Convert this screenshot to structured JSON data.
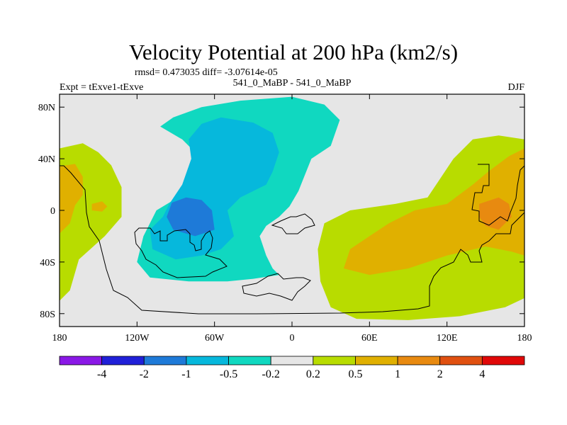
{
  "chart_data": {
    "type": "contour_map",
    "title": "Velocity Potential at 200 hPa (km2/s)",
    "stats_line": "rmsd= 0.473035 diff= -3.07614e-05",
    "left_label": "Expt = tExve1-tExve",
    "center_label": "541_0_MaBP - 541_0_MaBP",
    "right_label": "DJF",
    "x_axis": {
      "range": [
        -180,
        180
      ],
      "ticks": [
        -180,
        -120,
        -60,
        0,
        60,
        120,
        180
      ],
      "tick_labels": [
        "180",
        "120W",
        "60W",
        "0",
        "60E",
        "120E",
        "180"
      ]
    },
    "y_axis": {
      "range": [
        -90,
        90
      ],
      "ticks": [
        80,
        40,
        0,
        -40,
        -80
      ],
      "tick_labels": [
        "80N",
        "40N",
        "0",
        "40S",
        "80S"
      ]
    },
    "colorbar": {
      "boundaries": [
        "-4",
        "-2",
        "-1",
        "-0.5",
        "-0.2",
        "0.2",
        "0.5",
        "1",
        "2",
        "4"
      ],
      "colors": [
        "#8a18e6",
        "#2020d8",
        "#1e7ad8",
        "#06b8dc",
        "#10d8c0",
        "#e6e6e6",
        "#b8dc00",
        "#e0b000",
        "#e88a10",
        "#e05010",
        "#e00808"
      ]
    },
    "regions": [
      {
        "level": "0.2 to 0.5",
        "color": "#b8dc00",
        "name": "positive-west",
        "polygon": [
          [
            -180,
            48
          ],
          [
            -162,
            52
          ],
          [
            -150,
            45
          ],
          [
            -140,
            35
          ],
          [
            -132,
            18
          ],
          [
            -132,
            -5
          ],
          [
            -145,
            -20
          ],
          [
            -165,
            -38
          ],
          [
            -172,
            -62
          ],
          [
            -180,
            -70
          ]
        ]
      },
      {
        "level": "0.5 to 1",
        "color": "#e0b000",
        "name": "positive-west-core",
        "polygon": [
          [
            -180,
            34
          ],
          [
            -168,
            36
          ],
          [
            -162,
            26
          ],
          [
            -162,
            12
          ],
          [
            -168,
            4
          ],
          [
            -172,
            -10
          ],
          [
            -180,
            -18
          ]
        ]
      },
      {
        "level": "0.5 to 1",
        "color": "#e0b000",
        "name": "positive-west-spot",
        "polygon": [
          [
            -155,
            5
          ],
          [
            -147,
            7
          ],
          [
            -143,
            3
          ],
          [
            -147,
            -1
          ],
          [
            -155,
            0
          ]
        ]
      },
      {
        "level": "0.2 to 0.5",
        "color": "#b8dc00",
        "name": "positive-east",
        "polygon": [
          [
            180,
            55
          ],
          [
            160,
            58
          ],
          [
            140,
            55
          ],
          [
            125,
            40
          ],
          [
            105,
            10
          ],
          [
            80,
            5
          ],
          [
            45,
            0
          ],
          [
            25,
            -10
          ],
          [
            20,
            -30
          ],
          [
            22,
            -55
          ],
          [
            30,
            -75
          ],
          [
            50,
            -84
          ],
          [
            90,
            -85
          ],
          [
            130,
            -82
          ],
          [
            165,
            -75
          ],
          [
            180,
            -68
          ]
        ]
      },
      {
        "level": "0.5 to 1",
        "color": "#e0b000",
        "name": "positive-east-core",
        "polygon": [
          [
            180,
            48
          ],
          [
            168,
            42
          ],
          [
            152,
            30
          ],
          [
            140,
            20
          ],
          [
            120,
            5
          ],
          [
            95,
            0
          ],
          [
            75,
            -10
          ],
          [
            60,
            -20
          ],
          [
            45,
            -30
          ],
          [
            40,
            -45
          ],
          [
            60,
            -50
          ],
          [
            90,
            -45
          ],
          [
            120,
            -35
          ],
          [
            150,
            -28
          ],
          [
            170,
            -32
          ],
          [
            180,
            -35
          ]
        ]
      },
      {
        "level": "1 to 2",
        "color": "#e88a10",
        "name": "positive-east-max",
        "polygon": [
          [
            145,
            5
          ],
          [
            160,
            10
          ],
          [
            168,
            5
          ],
          [
            170,
            -5
          ],
          [
            160,
            -15
          ],
          [
            150,
            -12
          ],
          [
            145,
            -5
          ]
        ]
      },
      {
        "level": "-0.5 to -0.2",
        "color": "#10d8c0",
        "name": "negative-outer",
        "polygon": [
          [
            -102,
            65
          ],
          [
            -92,
            72
          ],
          [
            -70,
            80
          ],
          [
            -40,
            85
          ],
          [
            0,
            88
          ],
          [
            25,
            82
          ],
          [
            37,
            70
          ],
          [
            30,
            50
          ],
          [
            15,
            40
          ],
          [
            5,
            15
          ],
          [
            -2,
            3
          ],
          [
            -10,
            -5
          ],
          [
            -20,
            -12
          ],
          [
            -25,
            -20
          ],
          [
            -20,
            -35
          ],
          [
            -15,
            -45
          ],
          [
            -10,
            -50
          ],
          [
            -30,
            -53
          ],
          [
            -50,
            -55
          ],
          [
            -80,
            -55
          ],
          [
            -110,
            -52
          ],
          [
            -120,
            -40
          ],
          [
            -115,
            -20
          ],
          [
            -105,
            0
          ],
          [
            -80,
            15
          ],
          [
            -70,
            25
          ],
          [
            -75,
            45
          ],
          [
            -85,
            55
          ]
        ]
      },
      {
        "level": "-1 to -0.5",
        "color": "#06b8dc",
        "name": "negative-mid",
        "polygon": [
          [
            -80,
            55
          ],
          [
            -70,
            67
          ],
          [
            -55,
            72
          ],
          [
            -30,
            68
          ],
          [
            -15,
            60
          ],
          [
            -10,
            45
          ],
          [
            -15,
            30
          ],
          [
            -20,
            20
          ],
          [
            -40,
            10
          ],
          [
            -50,
            0
          ],
          [
            -45,
            -20
          ],
          [
            -55,
            -30
          ],
          [
            -70,
            -35
          ],
          [
            -90,
            -38
          ],
          [
            -108,
            -30
          ],
          [
            -110,
            -15
          ],
          [
            -100,
            -5
          ],
          [
            -95,
            5
          ],
          [
            -85,
            20
          ],
          [
            -78,
            40
          ]
        ]
      },
      {
        "level": "-2 to -1",
        "color": "#1e7ad8",
        "name": "negative-max",
        "polygon": [
          [
            -93,
            6
          ],
          [
            -82,
            10
          ],
          [
            -70,
            8
          ],
          [
            -62,
            0
          ],
          [
            -60,
            -15
          ],
          [
            -75,
            -20
          ],
          [
            -92,
            -15
          ],
          [
            -97,
            -5
          ]
        ]
      }
    ]
  }
}
